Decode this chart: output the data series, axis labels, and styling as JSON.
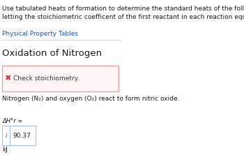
{
  "title_text": "Use tabulated heats of formation to determine the standard heats of the following reactions in kJ,\nletting the stoichiometric coefficent of the first reactant in each reaction equal one.",
  "link_text": "Physical Property Tables",
  "section_title": "Oxidation of Nitrogen",
  "error_text": "Check stoichiometry.",
  "reaction_text": "Nitrogen (N₂) and oxygen (O₂) react to form nitric oxide.",
  "delta_h_label": "ΔH°r =",
  "value": "90.37",
  "unit": "kJ",
  "bg_color": "#ffffff",
  "error_box_fill": "#fff5f5",
  "error_box_edge": "#e8a0a0",
  "info_box_fill": "#ffffff",
  "info_box_edge": "#a0c0e0",
  "separator_color": "#cccccc",
  "title_fontsize": 6.5,
  "section_fontsize": 9.5,
  "body_fontsize": 6.5,
  "small_fontsize": 6.0
}
